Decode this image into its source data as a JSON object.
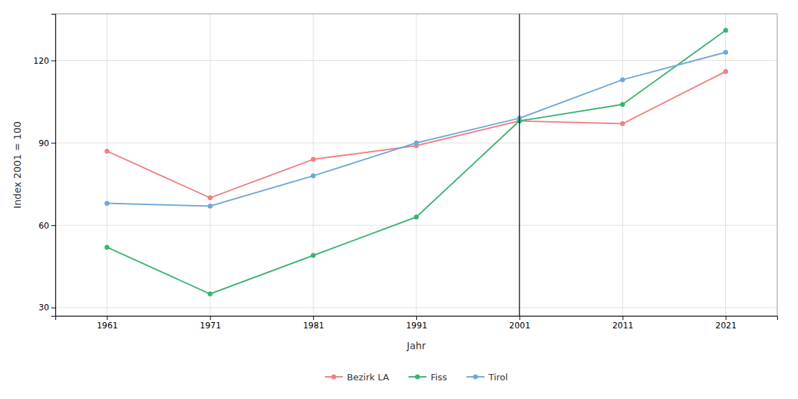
{
  "chart_data": {
    "type": "line",
    "x": [
      1961,
      1971,
      1981,
      1991,
      2001,
      2011,
      2021
    ],
    "series": [
      {
        "name": "Bezirk LA",
        "color": "#F08080",
        "values": [
          87,
          70,
          84,
          89,
          98,
          97,
          116
        ]
      },
      {
        "name": "Fiss",
        "color": "#3CB371",
        "values": [
          52,
          35,
          49,
          63,
          98,
          104,
          131
        ]
      },
      {
        "name": "Tirol",
        "color": "#6EA8D8",
        "values": [
          68,
          67,
          78,
          90,
          99,
          113,
          123
        ]
      }
    ],
    "x_label": "Jahr",
    "y_label": "Index 2001 = 100",
    "xlim": [
      1956,
      2026
    ],
    "xticks": [
      1961,
      1971,
      1981,
      1991,
      2001,
      2011,
      2021
    ],
    "ylim": [
      27,
      137
    ],
    "yticks": [
      30,
      60,
      90,
      120
    ],
    "vline_x": 2001,
    "marker": "circle",
    "grid": true,
    "legend": "bottom"
  }
}
